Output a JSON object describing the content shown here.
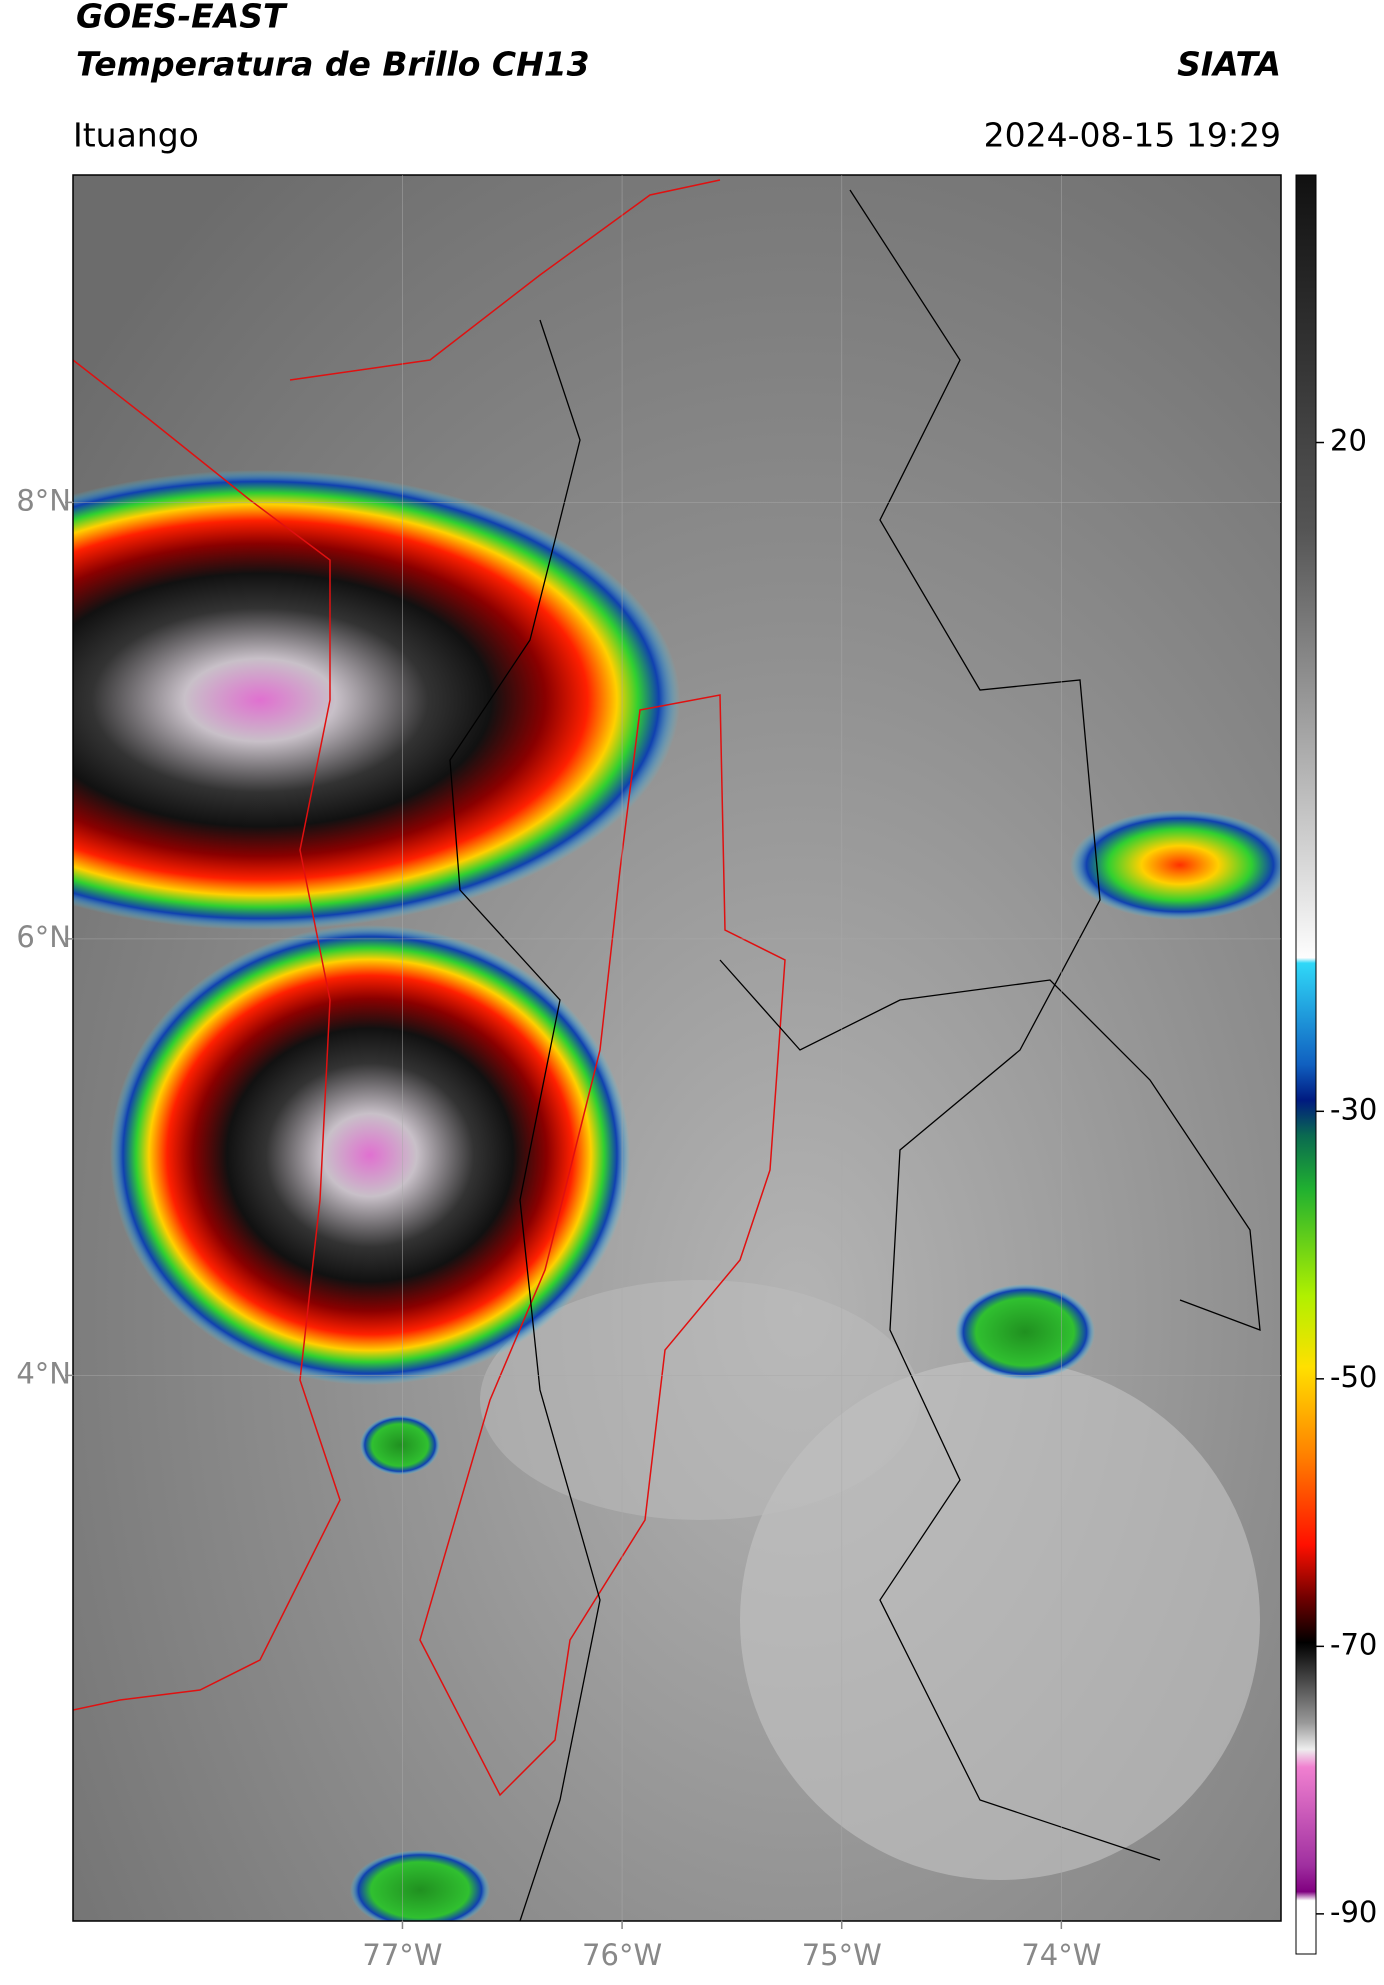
{
  "header": {
    "title": "GOES-EAST",
    "subtitle": "Temperatura de Brillo CH13",
    "source": "SIATA",
    "location": "Ituango",
    "timestamp": "2024-08-15 19:29"
  },
  "map": {
    "lon_range": [
      -78.5,
      -73
    ],
    "lat_range": [
      1.5,
      9.5
    ],
    "lat_ticks": [
      {
        "value": 8,
        "label": "8°N"
      },
      {
        "value": 6,
        "label": "6°N"
      },
      {
        "value": 4,
        "label": "4°N"
      }
    ],
    "lon_ticks": [
      {
        "value": -77,
        "label": "77°W"
      },
      {
        "value": -76,
        "label": "76°W"
      },
      {
        "value": -75,
        "label": "75°W"
      },
      {
        "value": -74,
        "label": "74°W"
      }
    ]
  },
  "colorbar": {
    "range": [
      -93,
      40
    ],
    "ticks": [
      20,
      -30,
      -50,
      -70,
      -90
    ]
  }
}
